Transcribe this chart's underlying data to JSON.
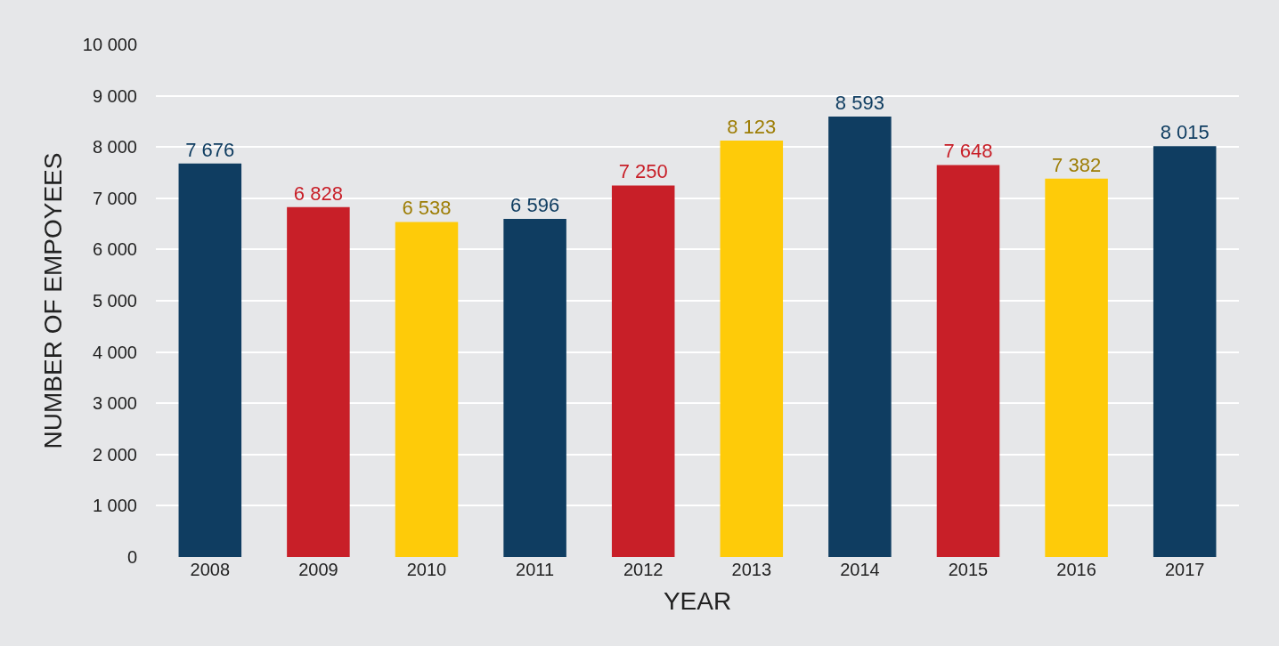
{
  "chart_data": {
    "type": "bar",
    "xlabel": "YEAR",
    "ylabel": "NUMBER OF EMPOYEES",
    "categories": [
      "2008",
      "2009",
      "2010",
      "2011",
      "2012",
      "2013",
      "2014",
      "2015",
      "2016",
      "2017"
    ],
    "values": [
      7676,
      6828,
      6538,
      6596,
      7250,
      8123,
      8593,
      7648,
      7382,
      8015
    ],
    "value_labels": [
      "7 676",
      "6 828",
      "6 538",
      "6 596",
      "7 250",
      "8 123",
      "8 593",
      "7 648",
      "7 382",
      "8 015"
    ],
    "colors": [
      "#0f3d61",
      "#c81f28",
      "#fecb09",
      "#0f3d61",
      "#c81f28",
      "#fecb09",
      "#0f3d61",
      "#c81f28",
      "#fecb09",
      "#0f3d61"
    ],
    "ylim": [
      0,
      10000
    ],
    "yticks": [
      {
        "value": 0,
        "label": "0"
      },
      {
        "value": 1000,
        "label": "1 000"
      },
      {
        "value": 2000,
        "label": "2 000"
      },
      {
        "value": 3000,
        "label": "3 000"
      },
      {
        "value": 4000,
        "label": "4 000"
      },
      {
        "value": 5000,
        "label": "5 000"
      },
      {
        "value": 6000,
        "label": "6 000"
      },
      {
        "value": 7000,
        "label": "7 000"
      },
      {
        "value": 8000,
        "label": "8 000"
      },
      {
        "value": 9000,
        "label": "9 000"
      },
      {
        "value": 10000,
        "label": "10 000"
      }
    ],
    "grid": "y"
  }
}
